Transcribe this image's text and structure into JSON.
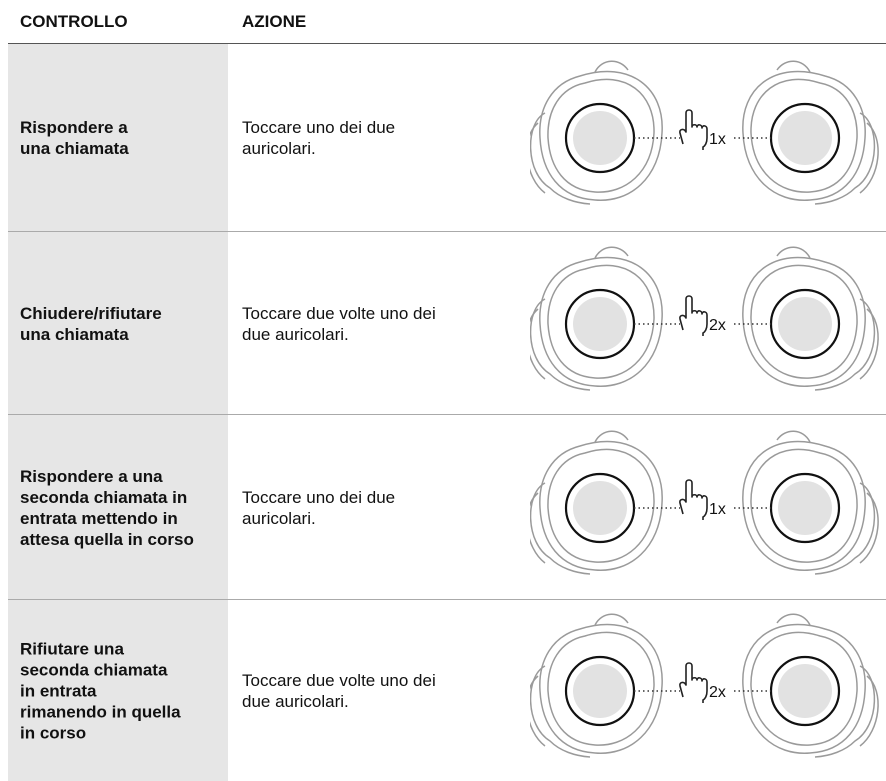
{
  "header": {
    "control": "CONTROLLO",
    "action": "AZIONE"
  },
  "rows": [
    {
      "control": [
        "Rispondere a",
        "una chiamata"
      ],
      "action": [
        "Toccare uno dei due",
        "auricolari."
      ],
      "taps": "1x"
    },
    {
      "control": [
        "Chiudere/rifiutare",
        "una chiamata"
      ],
      "action": [
        "Toccare due volte uno dei",
        "due auricolari."
      ],
      "taps": "2x"
    },
    {
      "control": [
        "Rispondere a una",
        "seconda chiamata in",
        "entrata mettendo in",
        "attesa quella in corso"
      ],
      "action": [
        "Toccare uno dei due",
        "auricolari."
      ],
      "taps": "1x"
    },
    {
      "control": [
        "Rifiutare una",
        "seconda chiamata",
        "in entrata",
        "rimanendo in quella",
        "in corso"
      ],
      "action": [
        "Toccare due volte uno dei",
        "due auricolari."
      ],
      "taps": "2x"
    }
  ]
}
